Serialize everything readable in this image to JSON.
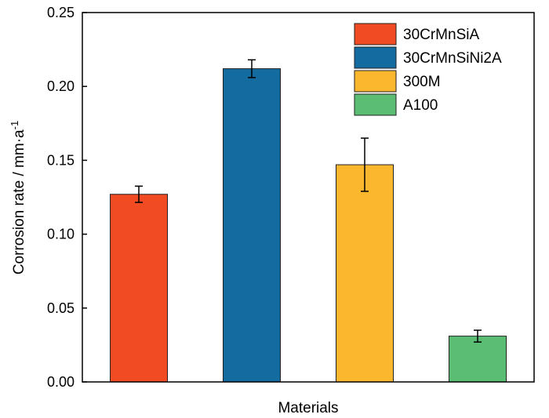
{
  "chart_data": {
    "type": "bar",
    "xlabel": "Materials",
    "ylabel": "Corrosion rate / mm·a",
    "ylabel_superscript": "-1",
    "ylim": [
      0,
      0.25
    ],
    "yticks": [
      "0.00",
      "0.05",
      "0.10",
      "0.15",
      "0.20",
      "0.25"
    ],
    "ytick_values": [
      0,
      0.05,
      0.1,
      0.15,
      0.2,
      0.25
    ],
    "grid": false,
    "legend_position": "top-right",
    "series": [
      {
        "name": "30CrMnSiA",
        "value": 0.127,
        "error": 0.0055,
        "color": "#f04b22"
      },
      {
        "name": "30CrMnSiNi2A",
        "value": 0.212,
        "error": 0.006,
        "color": "#136b9f"
      },
      {
        "name": "300M",
        "value": 0.147,
        "error": 0.018,
        "color": "#fbb72d"
      },
      {
        "name": "A100",
        "value": 0.031,
        "error": 0.004,
        "color": "#5bbd74"
      }
    ]
  }
}
